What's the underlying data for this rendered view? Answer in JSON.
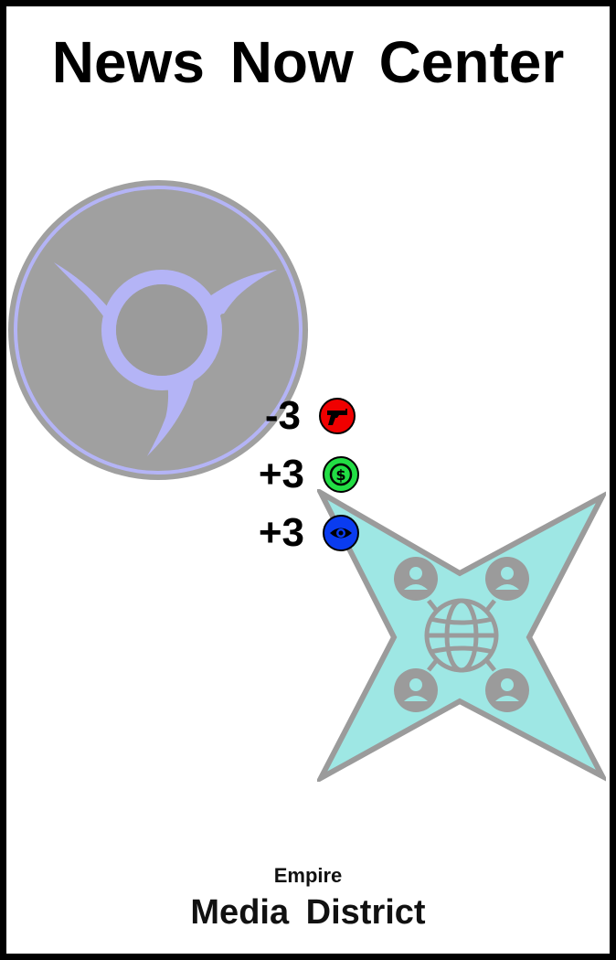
{
  "card": {
    "title": "News Now Center",
    "faction": "Empire",
    "district": "Media District"
  },
  "emblems": {
    "circle_emblem": "crescent-hook-emblem",
    "star_emblem": "network-globe-star-emblem"
  },
  "stats": [
    {
      "value": "-3",
      "icon": "pistol-icon",
      "color": "#f00000"
    },
    {
      "value": "+3",
      "icon": "dollar-coin-icon",
      "color": "#22dd44"
    },
    {
      "value": "+3",
      "icon": "eye-icon",
      "color": "#0a3cf0"
    }
  ],
  "colors": {
    "border": "#000000",
    "circle_fill": "#9b9b9b",
    "circle_accent": "#b4b4f6",
    "star_fill": "#9ee7e4",
    "star_outline": "#9b9b9b"
  }
}
